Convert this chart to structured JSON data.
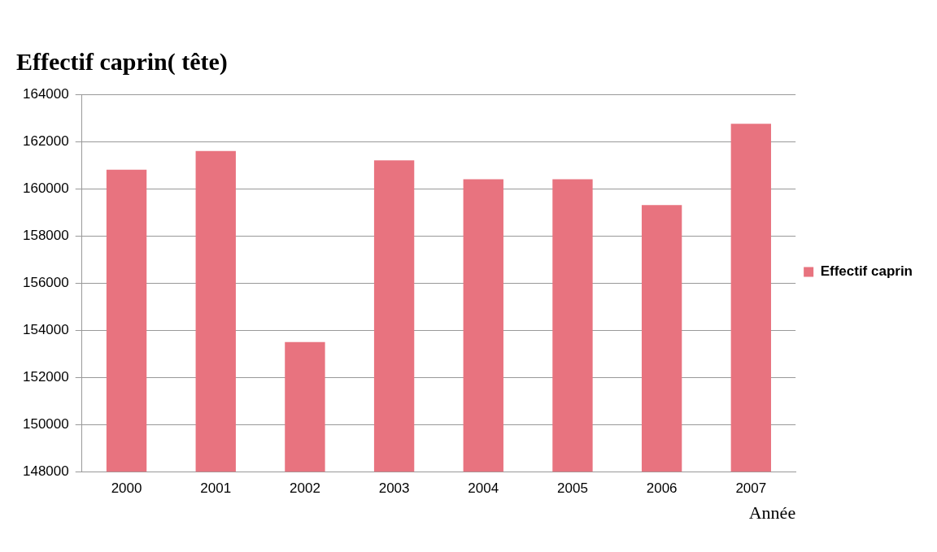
{
  "chart_data": {
    "type": "bar",
    "title": "Effectif caprin( tête)",
    "xlabel": "Année",
    "categories": [
      "2000",
      "2001",
      "2002",
      "2003",
      "2004",
      "2005",
      "2006",
      "2007"
    ],
    "series": [
      {
        "name": "Effectif caprin",
        "color": "#e8737f",
        "values": [
          160800,
          161600,
          153500,
          161200,
          160400,
          160400,
          159300,
          162750
        ]
      }
    ],
    "ylim": [
      148000,
      164000
    ],
    "yticks": [
      148000,
      150000,
      152000,
      154000,
      156000,
      158000,
      160000,
      162000,
      164000
    ],
    "grid": "y",
    "legend": "right"
  }
}
